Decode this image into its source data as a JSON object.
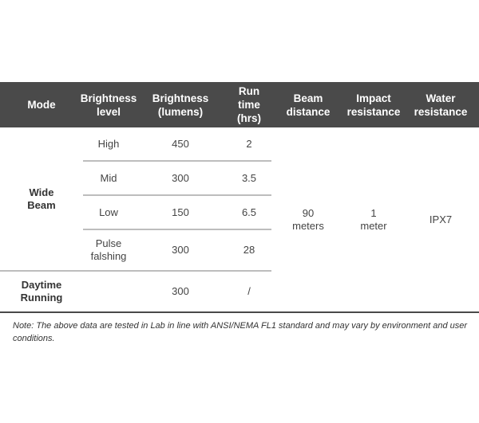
{
  "headers": [
    "Mode",
    "Brightness\nlevel",
    "Brightness\n(lumens)",
    "Run time\n(hrs)",
    "Beam\ndistance",
    "Impact\nresistance",
    "Water\nresistance"
  ],
  "wide_beam": {
    "mode": "Wide\nBeam",
    "rows": [
      {
        "level": "High",
        "lumens": "450",
        "run": "2"
      },
      {
        "level": "Mid",
        "lumens": "300",
        "run": "3.5"
      },
      {
        "level": "Low",
        "lumens": "150",
        "run": "6.5"
      },
      {
        "level": "Pulse\nfalshing",
        "lumens": "300",
        "run": "28"
      }
    ]
  },
  "daytime": {
    "mode": "Daytime\nRunning",
    "level": "",
    "lumens": "300",
    "run": "/"
  },
  "shared": {
    "beam": "90\nmeters",
    "impact": "1\nmeter",
    "water": "IPX7"
  },
  "note": "Note: The above data are tested in Lab in line with ANSI/NEMA FL1 standard and may vary by environment and user conditions.",
  "colors": {
    "header_bg": "#4a4a4a",
    "divider": "#bdbdbd"
  }
}
